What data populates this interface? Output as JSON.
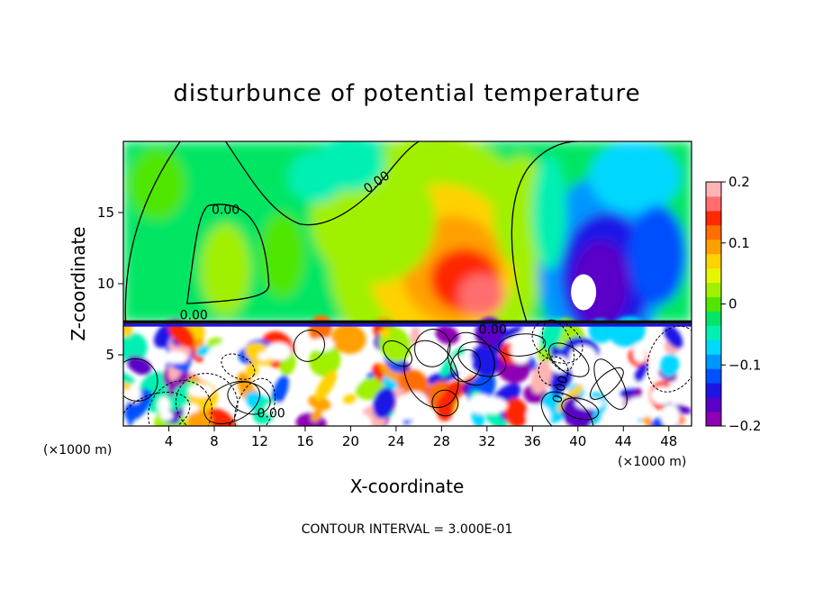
{
  "chart_data": {
    "type": "heatmap",
    "title": "disturbunce of potential temperature",
    "xlabel": "X-coordinate",
    "ylabel": "Z-coordinate",
    "x_unit": "(×1000 m)",
    "x_unit_right": "(×1000 m)",
    "xlim": [
      0,
      50
    ],
    "ylim": [
      0,
      20
    ],
    "x_ticks": [
      4,
      8,
      12,
      16,
      20,
      24,
      28,
      32,
      36,
      40,
      44,
      48
    ],
    "y_ticks": [
      5,
      10,
      15
    ],
    "colorbar": {
      "range": [
        -0.2,
        0.2
      ],
      "tick_values": [
        0.2,
        0.1,
        0,
        -0.1,
        -0.2
      ],
      "tick_labels": [
        "0.2",
        "0.1",
        "0",
        "−0.1",
        "−0.2"
      ],
      "colors": [
        "#8e00b4",
        "#5a00c8",
        "#1e14e6",
        "#0050ff",
        "#0096ff",
        "#00d7ff",
        "#00f0b4",
        "#00e664",
        "#50e600",
        "#a0f000",
        "#e6f500",
        "#ffd200",
        "#ffa000",
        "#ff6e00",
        "#ff2800",
        "#ff6e6e",
        "#ffb4b4"
      ]
    },
    "contour_labels": [
      "0.00",
      "0.00",
      "0.00",
      "0.00",
      "0.00",
      "0.00"
    ],
    "footer": "CONTOUR INTERVAL = 3.000E-01"
  }
}
